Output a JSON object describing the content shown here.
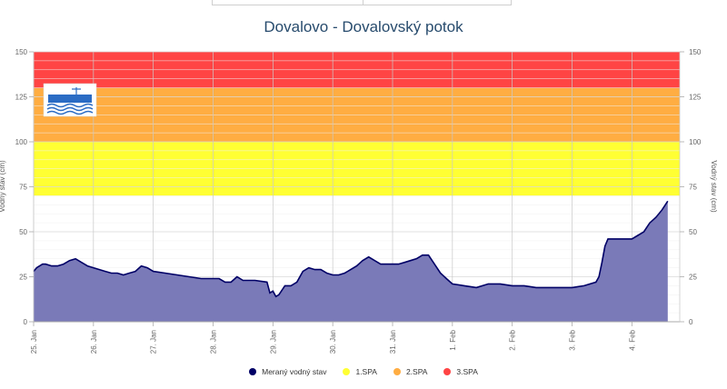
{
  "chart_data": {
    "type": "area",
    "title": "Dovalovo - Dovalovský potok",
    "ylabel_left": "Vodný stav (cm)",
    "ylabel_right": "Vodný stav (cm)",
    "ylim": [
      0,
      150
    ],
    "yticks": [
      0,
      25,
      50,
      75,
      100,
      125,
      150
    ],
    "xlim": [
      0,
      10.8
    ],
    "xticks": [
      {
        "x": 0,
        "label": "25. Jan"
      },
      {
        "x": 1,
        "label": "26. Jan"
      },
      {
        "x": 2,
        "label": "27. Jan"
      },
      {
        "x": 3,
        "label": "28. Jan"
      },
      {
        "x": 4,
        "label": "29. Jan"
      },
      {
        "x": 5,
        "label": "30. Jan"
      },
      {
        "x": 6,
        "label": "31. Jan"
      },
      {
        "x": 7,
        "label": "1. Feb"
      },
      {
        "x": 8,
        "label": "2. Feb"
      },
      {
        "x": 9,
        "label": "3. Feb"
      },
      {
        "x": 10,
        "label": "4. Feb"
      }
    ],
    "bands": [
      {
        "name": "1.SPA",
        "from": 70,
        "to": 100,
        "color": "#ffff33"
      },
      {
        "name": "2.SPA",
        "from": 100,
        "to": 130,
        "color": "#ffad42"
      },
      {
        "name": "3.SPA",
        "from": 130,
        "to": 150,
        "color": "#ff4444"
      }
    ],
    "series": [
      {
        "name": "Meraný vodný stav",
        "color": "#000066",
        "fill": "#7a7ab8",
        "x": [
          0,
          0.05,
          0.1,
          0.15,
          0.2,
          0.3,
          0.4,
          0.5,
          0.6,
          0.7,
          0.8,
          0.9,
          1.0,
          1.1,
          1.2,
          1.3,
          1.4,
          1.5,
          1.6,
          1.7,
          1.8,
          1.9,
          2.0,
          2.2,
          2.4,
          2.6,
          2.8,
          3.0,
          3.1,
          3.2,
          3.3,
          3.4,
          3.5,
          3.7,
          3.9,
          3.95,
          4.0,
          4.05,
          4.1,
          4.2,
          4.3,
          4.4,
          4.5,
          4.6,
          4.7,
          4.8,
          4.9,
          5.0,
          5.1,
          5.2,
          5.3,
          5.4,
          5.5,
          5.6,
          5.7,
          5.8,
          5.9,
          6.0,
          6.1,
          6.2,
          6.3,
          6.4,
          6.5,
          6.6,
          6.7,
          6.8,
          6.9,
          7.0,
          7.2,
          7.4,
          7.6,
          7.8,
          8.0,
          8.2,
          8.4,
          8.6,
          8.8,
          9.0,
          9.2,
          9.4,
          9.45,
          9.5,
          9.55,
          9.6,
          9.7,
          9.8,
          9.9,
          10.0,
          10.1,
          10.2,
          10.3,
          10.4,
          10.5,
          10.6
        ],
        "y": [
          28,
          30,
          31,
          32,
          32,
          31,
          31,
          32,
          34,
          35,
          33,
          31,
          30,
          29,
          28,
          27,
          27,
          26,
          27,
          28,
          31,
          30,
          28,
          27,
          26,
          25,
          24,
          24,
          24,
          22,
          22,
          25,
          23,
          23,
          22,
          16,
          17,
          14,
          15,
          20,
          20,
          22,
          28,
          30,
          29,
          29,
          27,
          26,
          26,
          27,
          29,
          31,
          34,
          36,
          34,
          32,
          32,
          32,
          32,
          33,
          34,
          35,
          37,
          37,
          32,
          27,
          24,
          21,
          20,
          19,
          21,
          21,
          20,
          20,
          19,
          19,
          19,
          19,
          20,
          22,
          25,
          33,
          42,
          46,
          46,
          46,
          46,
          46,
          48,
          50,
          55,
          58,
          62,
          67
        ]
      }
    ],
    "legend": {
      "position": "bottom-center",
      "items": [
        {
          "label": "Meraný vodný stav",
          "color": "#000066"
        },
        {
          "label": "1.SPA",
          "color": "#ffff33"
        },
        {
          "label": "2.SPA",
          "color": "#ffad42"
        },
        {
          "label": "3.SPA",
          "color": "#ff4444"
        }
      ]
    },
    "grid": true,
    "logo": "shmu-logo"
  }
}
